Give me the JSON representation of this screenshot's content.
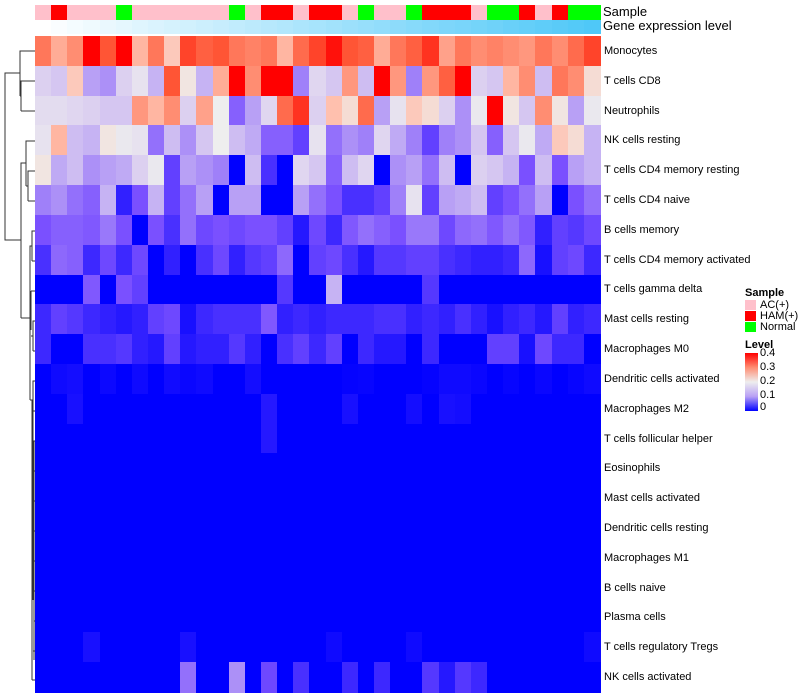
{
  "annotations": {
    "sample_label": "Sample",
    "gene_expression_label": "Gene expression level"
  },
  "legend": {
    "sample_title": "Sample",
    "sample_items": [
      {
        "label": "AC(+)",
        "color": "#FFC0CB"
      },
      {
        "label": "HAM(+)",
        "color": "#FF0000"
      },
      {
        "label": "Normal",
        "color": "#00FF00"
      }
    ],
    "level_title": "Level",
    "level_ticks": [
      "0.4",
      "0.3",
      "0.2",
      "0.1",
      "0"
    ]
  },
  "chart_data": {
    "type": "heatmap",
    "title": "",
    "color_scale": {
      "min": 0,
      "mid": 0.2,
      "max": 0.4,
      "low_color": "#0000FF",
      "mid_color": "#FFFFFF",
      "high_color": "#FF0000"
    },
    "sample_groups": [
      "AC(+)",
      "HAM(+)",
      "AC(+)",
      "AC(+)",
      "AC(+)",
      "Normal",
      "AC(+)",
      "AC(+)",
      "AC(+)",
      "AC(+)",
      "AC(+)",
      "AC(+)",
      "Normal",
      "AC(+)",
      "HAM(+)",
      "HAM(+)",
      "AC(+)",
      "HAM(+)",
      "HAM(+)",
      "AC(+)",
      "Normal",
      "AC(+)",
      "AC(+)",
      "Normal",
      "HAM(+)",
      "HAM(+)",
      "HAM(+)",
      "AC(+)",
      "Normal",
      "Normal",
      "HAM(+)",
      "AC(+)",
      "HAM(+)",
      "Normal",
      "Normal"
    ],
    "gene_expression_level": [
      0,
      0.03,
      0.06,
      0.09,
      0.12,
      0.15,
      0.18,
      0.21,
      0.24,
      0.26,
      0.29,
      0.32,
      0.35,
      0.38,
      0.41,
      0.44,
      0.47,
      0.5,
      0.53,
      0.56,
      0.59,
      0.62,
      0.65,
      0.68,
      0.71,
      0.74,
      0.76,
      0.79,
      0.82,
      0.85,
      0.88,
      0.91,
      0.94,
      0.97,
      1
    ],
    "rows": [
      {
        "name": "Monocytes",
        "values": [
          0.32,
          0.27,
          0.3,
          0.4,
          0.35,
          0.4,
          0.26,
          0.32,
          0.24,
          0.36,
          0.34,
          0.35,
          0.32,
          0.31,
          0.32,
          0.26,
          0.33,
          0.36,
          0.39,
          0.35,
          0.34,
          0.27,
          0.32,
          0.34,
          0.37,
          0.28,
          0.32,
          0.3,
          0.31,
          0.3,
          0.29,
          0.32,
          0.3,
          0.33,
          0.36
        ]
      },
      {
        "name": "T cells CD8",
        "values": [
          0.15,
          0.14,
          0.24,
          0.1,
          0.09,
          0.15,
          0.18,
          0.12,
          0.35,
          0.21,
          0.12,
          0.27,
          0.4,
          0.3,
          0.4,
          0.4,
          0.08,
          0.16,
          0.14,
          0.29,
          0.13,
          0.4,
          0.29,
          0.08,
          0.29,
          0.34,
          0.4,
          0.15,
          0.14,
          0.26,
          0.3,
          0.13,
          0.32,
          0.3,
          0.22
        ]
      },
      {
        "name": "Neutrophils",
        "values": [
          0.17,
          0.17,
          0.16,
          0.15,
          0.14,
          0.14,
          0.29,
          0.26,
          0.3,
          0.15,
          0.28,
          0.2,
          0.06,
          0.1,
          0.16,
          0.33,
          0.37,
          0.15,
          0.25,
          0.22,
          0.33,
          0.1,
          0.18,
          0.24,
          0.22,
          0.15,
          0.09,
          0.19,
          0.4,
          0.21,
          0.14,
          0.3,
          0.21,
          0.1,
          0.19
        ]
      },
      {
        "name": "NK cells resting",
        "values": [
          0.18,
          0.26,
          0.13,
          0.12,
          0.21,
          0.19,
          0.18,
          0.07,
          0.13,
          0.09,
          0.14,
          0.2,
          0.13,
          0.11,
          0.06,
          0.06,
          0.04,
          0.18,
          0.07,
          0.09,
          0.08,
          0.16,
          0.11,
          0.08,
          0.04,
          0.08,
          0.09,
          0.14,
          0.06,
          0.14,
          0.19,
          0.11,
          0.24,
          0.22,
          0.12
        ]
      },
      {
        "name": "T cells CD4 memory resting",
        "values": [
          0.21,
          0.11,
          0.13,
          0.09,
          0.1,
          0.11,
          0.15,
          0.19,
          0.04,
          0.1,
          0.09,
          0.08,
          0,
          0.13,
          0.03,
          0,
          0.16,
          0.14,
          0.06,
          0.13,
          0.16,
          0,
          0.09,
          0.1,
          0.07,
          0.13,
          0,
          0.15,
          0.14,
          0.12,
          0.05,
          0.13,
          0.05,
          0.1,
          0.12
        ]
      },
      {
        "name": "T cells CD4 naive",
        "values": [
          0.08,
          0.09,
          0.07,
          0.06,
          0.12,
          0.02,
          0.05,
          0.12,
          0.04,
          0.07,
          0.1,
          0,
          0.1,
          0.1,
          0,
          0,
          0.1,
          0.07,
          0.05,
          0.03,
          0.03,
          0.04,
          0.08,
          0.18,
          0.04,
          0.1,
          0.11,
          0.13,
          0.04,
          0.05,
          0.07,
          0.1,
          0,
          0.05,
          0.07
        ]
      },
      {
        "name": "B cells memory",
        "values": [
          0.05,
          0.06,
          0.06,
          0.055,
          0.075,
          0.05,
          0,
          0.05,
          0.03,
          0.07,
          0.045,
          0.05,
          0.045,
          0.05,
          0.05,
          0.04,
          0.015,
          0.045,
          0.025,
          0.055,
          0.07,
          0.06,
          0.05,
          0.075,
          0.075,
          0.045,
          0.065,
          0.07,
          0.055,
          0.07,
          0.055,
          0.02,
          0.04,
          0.035,
          0.045
        ]
      },
      {
        "name": "T cells CD4 memory activated",
        "values": [
          0.03,
          0.065,
          0.06,
          0.025,
          0.045,
          0.025,
          0.045,
          0,
          0.02,
          0,
          0.03,
          0.045,
          0.02,
          0.035,
          0.04,
          0.065,
          0,
          0.04,
          0.045,
          0.03,
          0.015,
          0.035,
          0.035,
          0.04,
          0.04,
          0.03,
          0.025,
          0.02,
          0.02,
          0.025,
          0.065,
          0.01,
          0.04,
          0.045,
          0.025
        ]
      },
      {
        "name": "T cells gamma delta",
        "values": [
          0,
          0,
          0,
          0.055,
          0,
          0.05,
          0.04,
          0,
          0,
          0,
          0,
          0,
          0,
          0,
          0,
          0.035,
          0,
          0,
          0.12,
          0,
          0,
          0,
          0,
          0,
          0.035,
          0,
          0,
          0,
          0,
          0,
          0,
          0,
          0,
          0,
          0
        ]
      },
      {
        "name": "Mast cells resting",
        "values": [
          0.025,
          0.04,
          0.035,
          0.025,
          0.02,
          0.015,
          0.02,
          0.04,
          0.045,
          0.01,
          0.025,
          0.03,
          0.03,
          0.03,
          0.055,
          0.02,
          0.025,
          0.02,
          0.025,
          0.025,
          0.025,
          0.03,
          0.03,
          0.02,
          0.025,
          0.02,
          0.03,
          0.02,
          0.01,
          0.02,
          0.025,
          0.015,
          0.04,
          0.02,
          0.025
        ]
      },
      {
        "name": "Macrophages M0",
        "values": [
          0.025,
          0,
          0,
          0.03,
          0.03,
          0.035,
          0.02,
          0.015,
          0.04,
          0.015,
          0.02,
          0.02,
          0.035,
          0.02,
          0,
          0.03,
          0.04,
          0.025,
          0.04,
          0,
          0.025,
          0.015,
          0.015,
          0,
          0.025,
          0,
          0,
          0,
          0.04,
          0.04,
          0.01,
          0.045,
          0.025,
          0.025,
          0
        ]
      },
      {
        "name": "Dendritic cells activated",
        "values": [
          0,
          0.006,
          0.008,
          0,
          0.005,
          0,
          0.006,
          0,
          0.007,
          0.004,
          0.006,
          0,
          0,
          0.008,
          0,
          0,
          0,
          0,
          0,
          0.002,
          0.003,
          0,
          0,
          0,
          0.002,
          0.006,
          0.006,
          0.004,
          0,
          0.003,
          0,
          0.004,
          0,
          0.003,
          0.006
        ]
      },
      {
        "name": "Macrophages M2",
        "values": [
          0,
          0,
          0.01,
          0,
          0,
          0,
          0,
          0,
          0,
          0,
          0,
          0,
          0,
          0,
          0.015,
          0,
          0,
          0,
          0,
          0.01,
          0,
          0,
          0,
          0.008,
          0,
          0.01,
          0.008,
          0,
          0,
          0,
          0,
          0,
          0,
          0,
          0
        ]
      },
      {
        "name": "T cells follicular helper",
        "values": [
          0,
          0,
          0,
          0,
          0,
          0,
          0,
          0,
          0,
          0,
          0,
          0,
          0,
          0,
          0.015,
          0,
          0,
          0,
          0,
          0,
          0,
          0,
          0,
          0,
          0,
          0,
          0,
          0,
          0,
          0,
          0,
          0,
          0,
          0,
          0
        ]
      },
      {
        "name": "Eosinophils",
        "values": [
          0,
          0,
          0,
          0,
          0,
          0,
          0,
          0,
          0,
          0,
          0,
          0,
          0,
          0,
          0,
          0,
          0,
          0,
          0,
          0,
          0,
          0,
          0,
          0,
          0,
          0,
          0,
          0,
          0,
          0,
          0,
          0,
          0,
          0,
          0
        ]
      },
      {
        "name": "Mast cells activated",
        "values": [
          0,
          0,
          0,
          0,
          0,
          0,
          0,
          0,
          0,
          0,
          0,
          0,
          0,
          0,
          0,
          0,
          0,
          0,
          0,
          0,
          0,
          0,
          0,
          0,
          0,
          0,
          0,
          0,
          0,
          0,
          0,
          0,
          0,
          0,
          0
        ]
      },
      {
        "name": "Dendritic cells resting",
        "values": [
          0,
          0,
          0,
          0,
          0,
          0,
          0,
          0,
          0,
          0,
          0,
          0,
          0,
          0,
          0,
          0,
          0,
          0,
          0,
          0,
          0,
          0,
          0,
          0,
          0,
          0,
          0,
          0,
          0,
          0,
          0,
          0,
          0,
          0,
          0
        ]
      },
      {
        "name": "Macrophages M1",
        "values": [
          0,
          0,
          0,
          0,
          0,
          0,
          0,
          0,
          0,
          0,
          0,
          0,
          0,
          0,
          0,
          0,
          0,
          0,
          0,
          0,
          0,
          0,
          0,
          0,
          0,
          0,
          0,
          0,
          0,
          0,
          0,
          0,
          0,
          0,
          0
        ]
      },
      {
        "name": "B cells naive",
        "values": [
          0,
          0,
          0,
          0,
          0,
          0,
          0,
          0,
          0,
          0,
          0,
          0,
          0,
          0,
          0,
          0,
          0,
          0,
          0,
          0,
          0,
          0,
          0,
          0,
          0,
          0,
          0,
          0,
          0,
          0,
          0,
          0,
          0,
          0,
          0
        ]
      },
      {
        "name": "Plasma cells",
        "values": [
          0,
          0,
          0,
          0,
          0,
          0,
          0,
          0,
          0,
          0,
          0,
          0,
          0,
          0,
          0,
          0,
          0,
          0,
          0,
          0,
          0,
          0,
          0,
          0,
          0,
          0,
          0,
          0,
          0,
          0,
          0,
          0,
          0,
          0,
          0
        ]
      },
      {
        "name": "T cells regulatory  Tregs",
        "values": [
          0,
          0,
          0,
          0.01,
          0,
          0,
          0,
          0,
          0,
          0.01,
          0,
          0,
          0,
          0,
          0,
          0,
          0,
          0,
          0.006,
          0,
          0,
          0,
          0,
          0.006,
          0,
          0,
          0,
          0,
          0,
          0,
          0,
          0,
          0,
          0,
          0.006
        ]
      },
      {
        "name": "NK cells activated",
        "values": [
          0,
          0,
          0,
          0,
          0,
          0,
          0,
          0,
          0,
          0.07,
          0,
          0,
          0.09,
          0,
          0.045,
          0,
          0.03,
          0,
          0,
          0.025,
          0,
          0.025,
          0,
          0,
          0.035,
          0.015,
          0.035,
          0.025,
          0,
          0,
          0,
          0,
          0,
          0,
          0
        ]
      }
    ]
  }
}
